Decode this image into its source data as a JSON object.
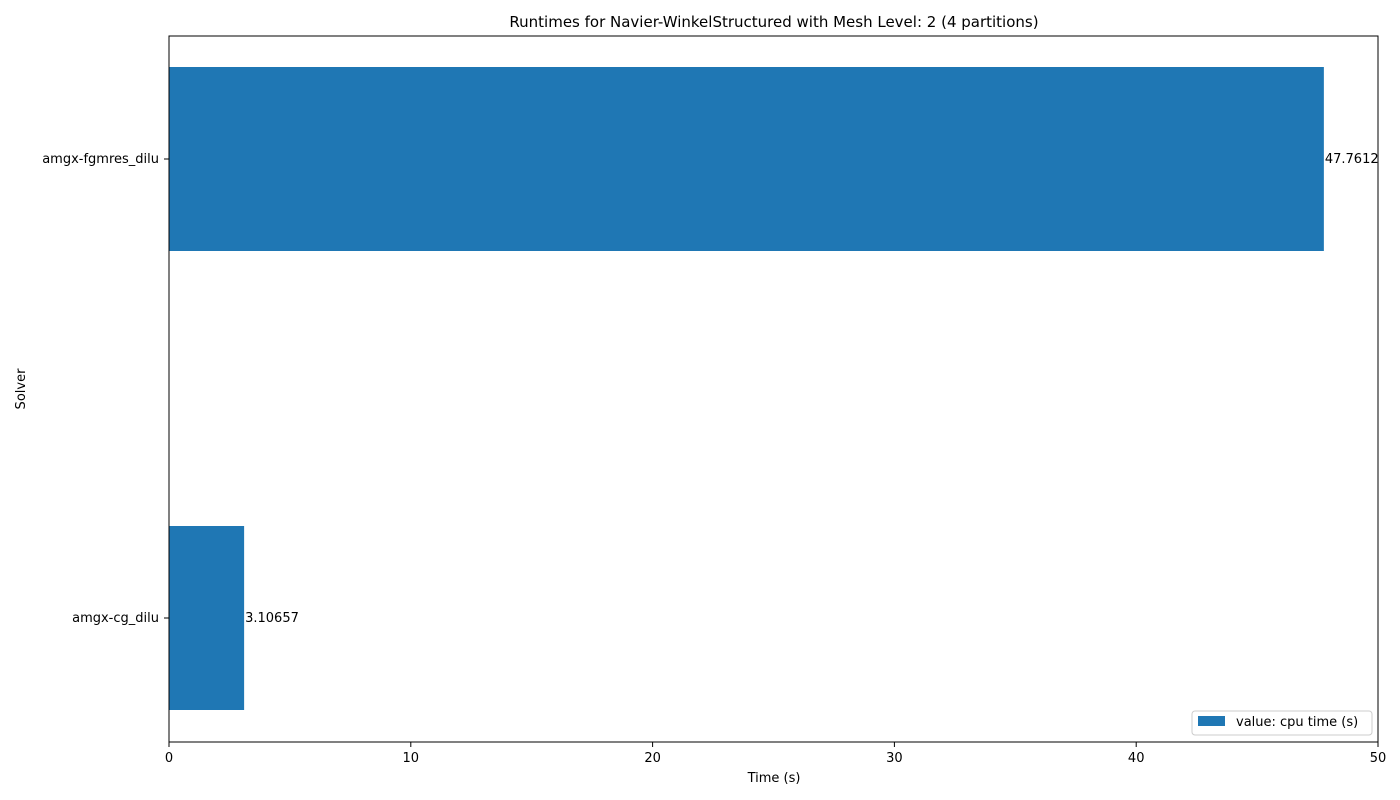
{
  "chart_data": {
    "type": "bar",
    "orientation": "horizontal",
    "title": "Runtimes for Navier-WinkelStructured with Mesh Level: 2 (4 partitions)",
    "xlabel": "Time (s)",
    "ylabel": "Solver",
    "xlim": [
      0,
      50
    ],
    "xticks": [
      0,
      10,
      20,
      30,
      40,
      50
    ],
    "categories": [
      "amgx-fgmres_dilu",
      "amgx-cg_dilu"
    ],
    "series": [
      {
        "name": "value: cpu time (s)",
        "values": [
          47.7612,
          3.10657
        ],
        "data_labels": [
          "47.7612",
          "3.10657"
        ],
        "color": "#1f77b4"
      }
    ],
    "grid": false,
    "legend_position": "lower-right"
  }
}
